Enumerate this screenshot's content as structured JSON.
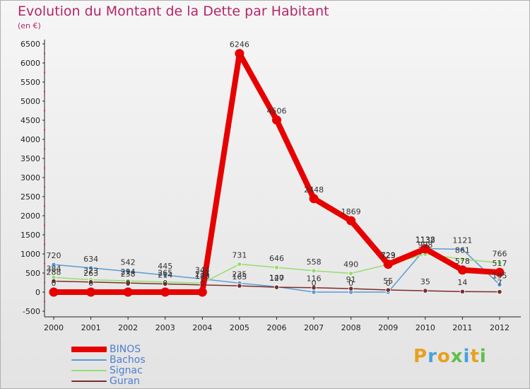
{
  "chart_data": {
    "type": "line",
    "title": "Evolution du Montant de la Dette par Habitant",
    "subtitle": "(en €)",
    "xlabel": "",
    "ylabel": "",
    "categories": [
      "2000",
      "2001",
      "2002",
      "2003",
      "2004",
      "2005",
      "2006",
      "2007",
      "2008",
      "2009",
      "2010",
      "2011",
      "2012"
    ],
    "ylim": [
      -500,
      6500
    ],
    "yticks": [
      -500,
      0,
      500,
      1000,
      1500,
      2000,
      2500,
      3000,
      3500,
      4000,
      4500,
      5000,
      5500,
      6000,
      6500
    ],
    "grid": false,
    "legend_position": "bottom-left",
    "series": [
      {
        "name": "BINOS",
        "color": "#e60000",
        "values": [
          0,
          0,
          0,
          0,
          0,
          6246,
          4506,
          2448,
          1869,
          729,
          1132,
          578,
          517
        ]
      },
      {
        "name": "Bachos",
        "color": "#5b9bd5",
        "values": [
          720,
          634,
          542,
          445,
          344,
          235,
          140,
          0,
          0,
          0,
          1138,
          1121,
          195
        ]
      },
      {
        "name": "Signac",
        "color": "#98dc6e",
        "values": [
          384,
          323,
          294,
          265,
          234,
          731,
          646,
          558,
          490,
          723,
          998,
          861,
          766
        ]
      },
      {
        "name": "Guran",
        "color": "#7a2d2d",
        "values": [
          288,
          263,
          238,
          214,
          188,
          165,
          127,
          116,
          91,
          55,
          35,
          14,
          7
        ]
      }
    ]
  },
  "logo": {
    "text": "Proxiti"
  }
}
